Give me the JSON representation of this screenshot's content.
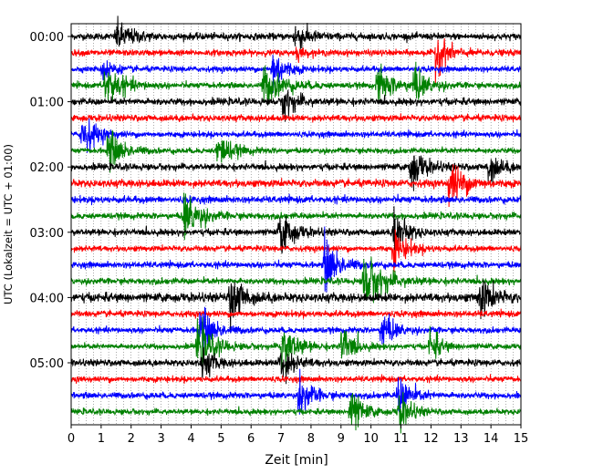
{
  "chart_data": {
    "type": "line",
    "chart_kind": "helicorder",
    "title": "",
    "xlabel": "Zeit  [min]",
    "ylabel": "UTC (Lokalzeit = UTC + 01:00)",
    "xlim": [
      0,
      15
    ],
    "x_ticks": [
      0,
      1,
      2,
      3,
      4,
      5,
      6,
      7,
      8,
      9,
      10,
      11,
      12,
      13,
      14,
      15
    ],
    "x_tick_labels": [
      "0",
      "1",
      "2",
      "3",
      "4",
      "5",
      "6",
      "7",
      "8",
      "9",
      "10",
      "11",
      "12",
      "13",
      "14",
      "15"
    ],
    "x_minor_grid_step_min": 0.25,
    "grid": true,
    "traces_per_row_minutes": 15,
    "row_count": 24,
    "first_row_time": "00:00",
    "y_tick_labels": [
      "00:00",
      "01:00",
      "02:00",
      "03:00",
      "04:00",
      "05:00"
    ],
    "y_tick_rows": [
      0,
      4,
      8,
      12,
      16,
      20
    ],
    "color_cycle": [
      "#000000",
      "#ff0000",
      "#0000ff",
      "#008000"
    ],
    "noise_levels": [
      0.2,
      0.18,
      0.17,
      0.17,
      0.2,
      0.19,
      0.17,
      0.16,
      0.19,
      0.22,
      0.2,
      0.18,
      0.19,
      0.17,
      0.18,
      0.18,
      0.26,
      0.18,
      0.17,
      0.16,
      0.19,
      0.17,
      0.18,
      0.16
    ],
    "events": [
      {
        "row": 0,
        "t": 1.5,
        "amp": 0.9,
        "dur": 0.5
      },
      {
        "row": 0,
        "t": 7.45,
        "amp": 0.9,
        "dur": 0.4
      },
      {
        "row": 1,
        "t": 12.15,
        "amp": 1.4,
        "dur": 0.35
      },
      {
        "row": 1,
        "t": 7.5,
        "amp": 0.4,
        "dur": 0.2
      },
      {
        "row": 2,
        "t": 1.05,
        "amp": 1.0,
        "dur": 0.25
      },
      {
        "row": 2,
        "t": 6.7,
        "amp": 1.5,
        "dur": 0.35
      },
      {
        "row": 3,
        "t": 1.1,
        "amp": 1.4,
        "dur": 0.5
      },
      {
        "row": 3,
        "t": 6.4,
        "amp": 1.2,
        "dur": 0.6
      },
      {
        "row": 3,
        "t": 10.2,
        "amp": 1.2,
        "dur": 0.5
      },
      {
        "row": 3,
        "t": 11.4,
        "amp": 1.1,
        "dur": 0.4
      },
      {
        "row": 4,
        "t": 7.05,
        "amp": 1.0,
        "dur": 0.4
      },
      {
        "row": 6,
        "t": 0.35,
        "amp": 1.4,
        "dur": 0.4
      },
      {
        "row": 7,
        "t": 1.2,
        "amp": 1.3,
        "dur": 0.45
      },
      {
        "row": 7,
        "t": 4.85,
        "amp": 1.3,
        "dur": 0.4
      },
      {
        "row": 8,
        "t": 11.3,
        "amp": 1.4,
        "dur": 0.4
      },
      {
        "row": 8,
        "t": 13.9,
        "amp": 1.1,
        "dur": 0.35
      },
      {
        "row": 9,
        "t": 12.6,
        "amp": 1.5,
        "dur": 0.45
      },
      {
        "row": 11,
        "t": 3.75,
        "amp": 1.6,
        "dur": 0.45
      },
      {
        "row": 12,
        "t": 6.95,
        "amp": 1.4,
        "dur": 0.4
      },
      {
        "row": 12,
        "t": 10.75,
        "amp": 1.6,
        "dur": 0.35
      },
      {
        "row": 13,
        "t": 10.75,
        "amp": 1.2,
        "dur": 0.4
      },
      {
        "row": 14,
        "t": 8.45,
        "amp": 1.8,
        "dur": 0.4
      },
      {
        "row": 15,
        "t": 9.75,
        "amp": 1.7,
        "dur": 0.6
      },
      {
        "row": 16,
        "t": 5.3,
        "amp": 1.8,
        "dur": 0.35
      },
      {
        "row": 16,
        "t": 13.6,
        "amp": 1.4,
        "dur": 0.4
      },
      {
        "row": 18,
        "t": 4.25,
        "amp": 1.7,
        "dur": 0.4
      },
      {
        "row": 18,
        "t": 10.35,
        "amp": 1.3,
        "dur": 0.35
      },
      {
        "row": 19,
        "t": 4.2,
        "amp": 1.4,
        "dur": 0.5
      },
      {
        "row": 19,
        "t": 7.0,
        "amp": 1.8,
        "dur": 0.4
      },
      {
        "row": 19,
        "t": 9.0,
        "amp": 1.4,
        "dur": 0.35
      },
      {
        "row": 19,
        "t": 11.95,
        "amp": 1.2,
        "dur": 0.3
      },
      {
        "row": 20,
        "t": 4.35,
        "amp": 1.0,
        "dur": 0.35
      },
      {
        "row": 20,
        "t": 6.95,
        "amp": 1.2,
        "dur": 0.4
      },
      {
        "row": 22,
        "t": 7.6,
        "amp": 1.5,
        "dur": 0.35
      },
      {
        "row": 22,
        "t": 10.9,
        "amp": 1.5,
        "dur": 0.35
      },
      {
        "row": 23,
        "t": 9.3,
        "amp": 1.6,
        "dur": 0.35
      },
      {
        "row": 23,
        "t": 10.9,
        "amp": 1.3,
        "dur": 0.35
      }
    ]
  }
}
